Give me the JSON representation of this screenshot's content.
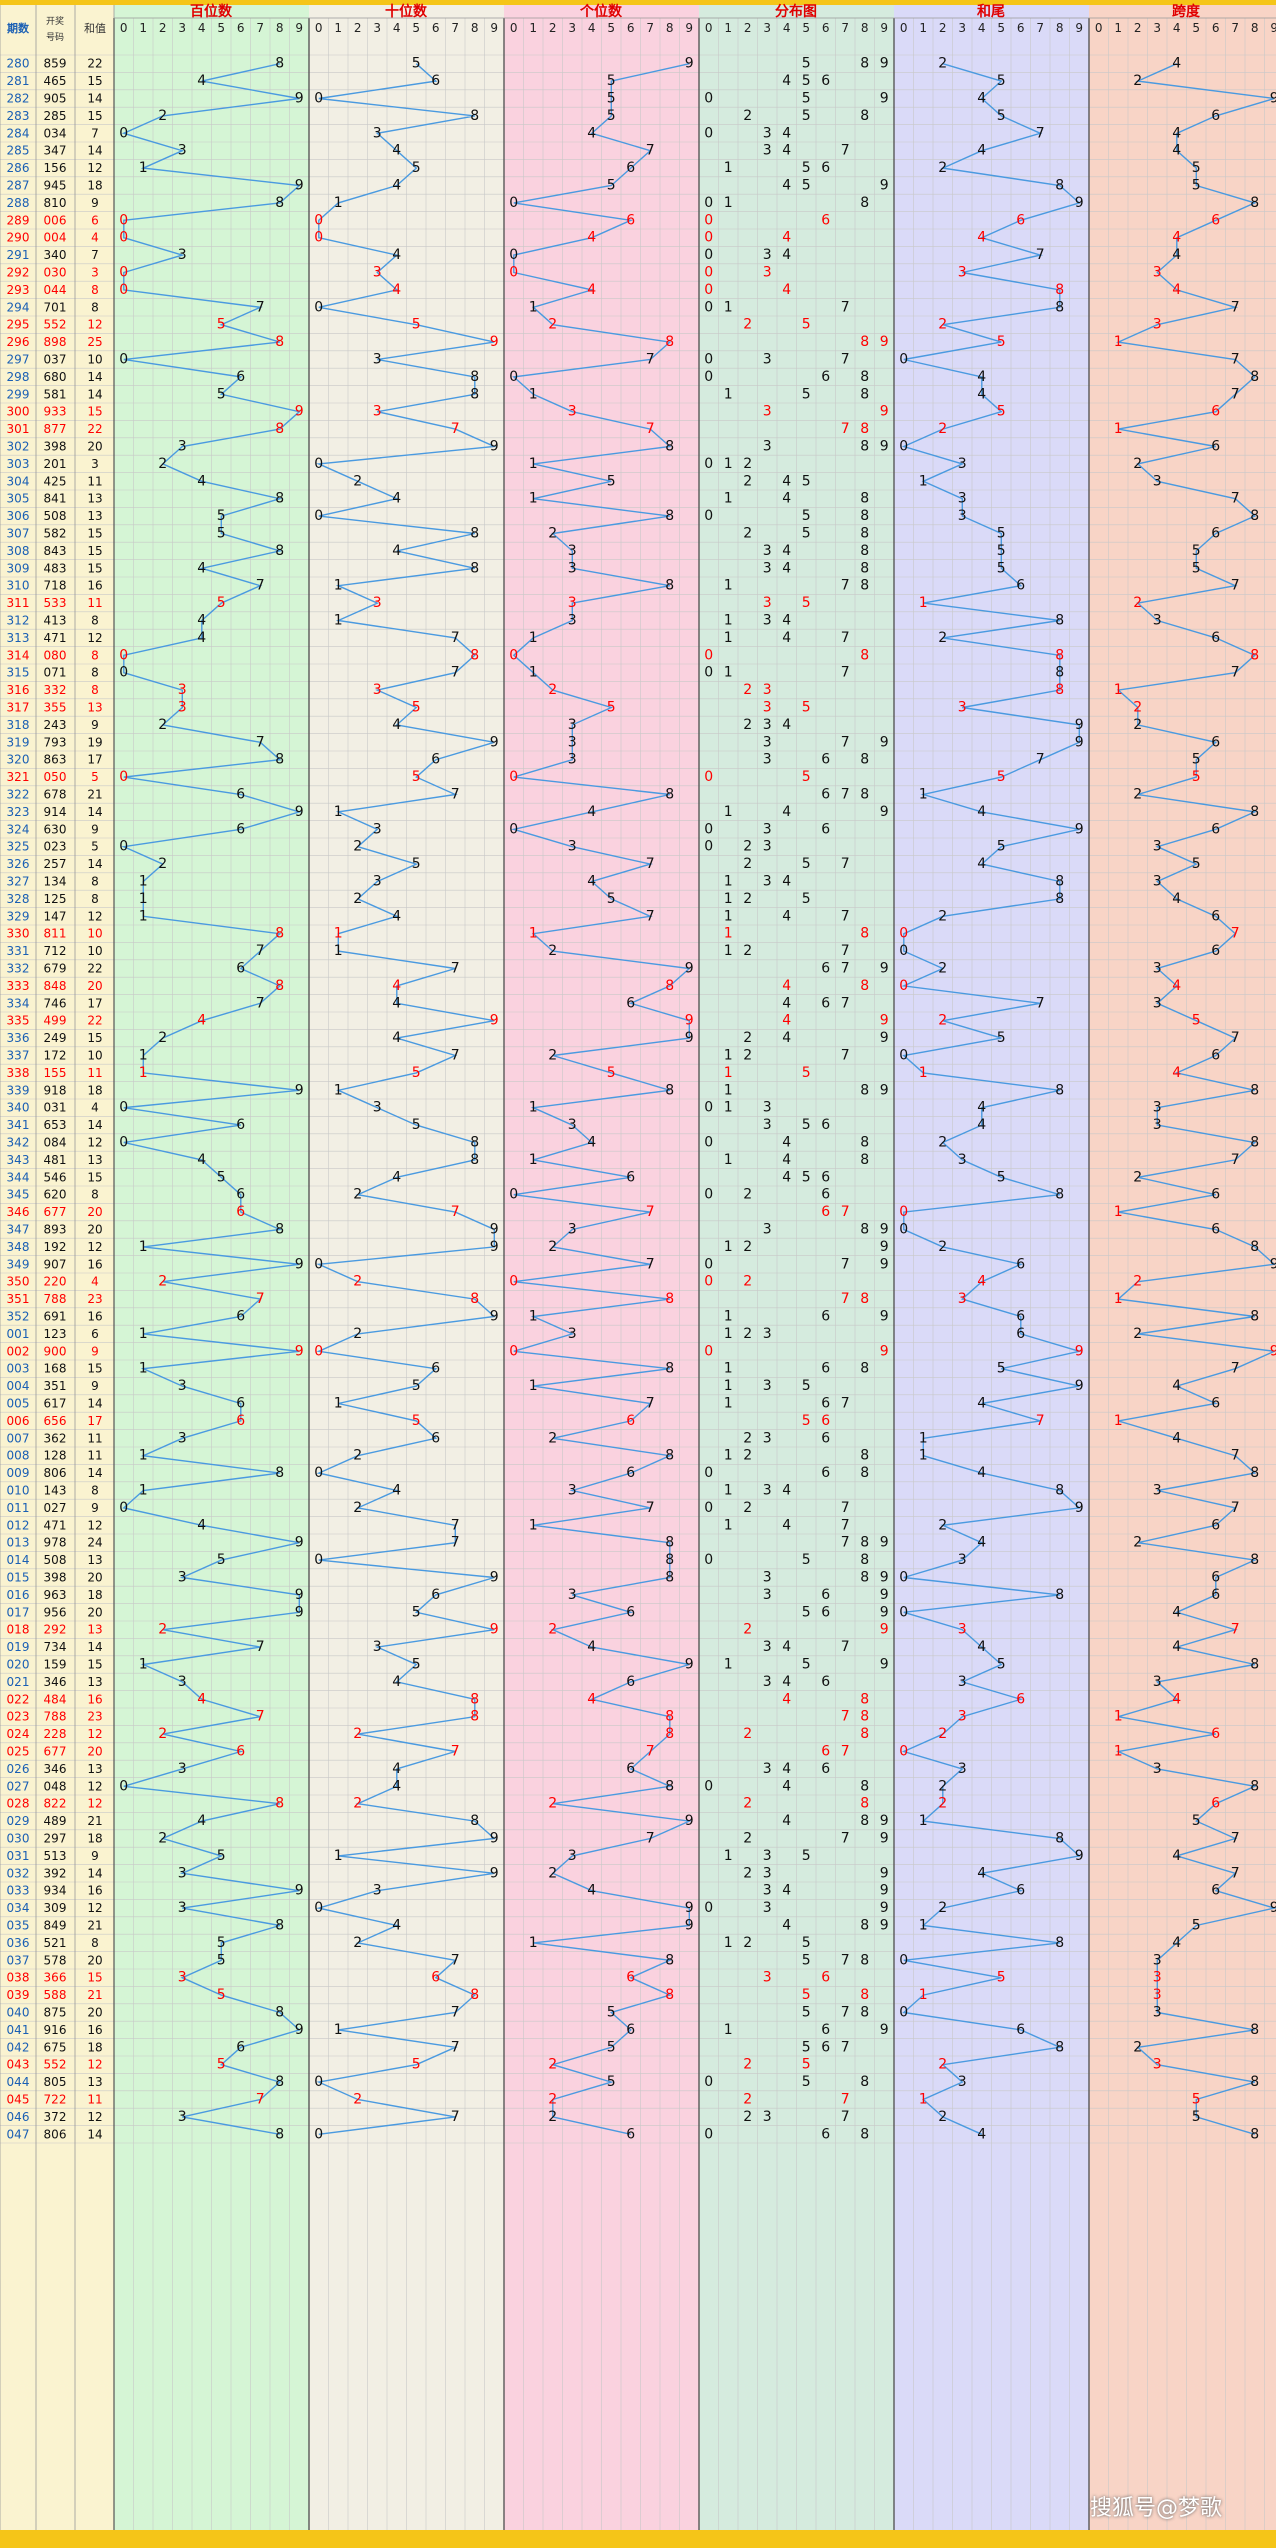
{
  "headers": {
    "issue": "期数",
    "number": "开奖号码",
    "sum": "和值",
    "hundreds": "百位数",
    "tens": "十位数",
    "units": "个位数",
    "distribution": "分布图",
    "sum_tail": "和尾",
    "span": "跨度"
  },
  "digit_labels": [
    "0",
    "1",
    "2",
    "3",
    "4",
    "5",
    "6",
    "7",
    "8",
    "9"
  ],
  "watermark": "搜狐号@梦歌",
  "colors": {
    "hundreds_bg": "#d5f5d5",
    "tens_bg": "#f2efe4",
    "units_bg": "#fad2df",
    "distribution_bg": "#d5ebde",
    "sum_tail_bg": "#dadaf8",
    "span_bg": "#f8d4c6",
    "line": "#4a9ae0",
    "red": "#ff0000",
    "header_red": "#e00000",
    "issue_blue": "#1a5fb4",
    "left_bg": "#faf3d0",
    "grid": "#c8c8c8"
  },
  "chart_data": {
    "type": "table",
    "columns": [
      "issue",
      "number",
      "sum"
    ],
    "rows": [
      [
        "280",
        "859",
        "22"
      ],
      [
        "281",
        "465",
        "15"
      ],
      [
        "282",
        "905",
        "14"
      ],
      [
        "283",
        "285",
        "15"
      ],
      [
        "284",
        "034",
        "7"
      ],
      [
        "285",
        "347",
        "14"
      ],
      [
        "286",
        "156",
        "12"
      ],
      [
        "287",
        "945",
        "18"
      ],
      [
        "288",
        "810",
        "9"
      ],
      [
        "289",
        "006",
        "6"
      ],
      [
        "290",
        "004",
        "4"
      ],
      [
        "291",
        "340",
        "7"
      ],
      [
        "292",
        "030",
        "3"
      ],
      [
        "293",
        "044",
        "8"
      ],
      [
        "294",
        "701",
        "8"
      ],
      [
        "295",
        "552",
        "12"
      ],
      [
        "296",
        "898",
        "25"
      ],
      [
        "297",
        "037",
        "10"
      ],
      [
        "298",
        "680",
        "14"
      ],
      [
        "299",
        "581",
        "14"
      ],
      [
        "300",
        "933",
        "15"
      ],
      [
        "301",
        "877",
        "22"
      ],
      [
        "302",
        "398",
        "20"
      ],
      [
        "303",
        "201",
        "3"
      ],
      [
        "304",
        "425",
        "11"
      ],
      [
        "305",
        "841",
        "13"
      ],
      [
        "306",
        "508",
        "13"
      ],
      [
        "307",
        "582",
        "15"
      ],
      [
        "308",
        "843",
        "15"
      ],
      [
        "309",
        "483",
        "15"
      ],
      [
        "310",
        "718",
        "16"
      ],
      [
        "311",
        "533",
        "11"
      ],
      [
        "312",
        "413",
        "8"
      ],
      [
        "313",
        "471",
        "12"
      ],
      [
        "314",
        "080",
        "8"
      ],
      [
        "315",
        "071",
        "8"
      ],
      [
        "316",
        "332",
        "8"
      ],
      [
        "317",
        "355",
        "13"
      ],
      [
        "318",
        "243",
        "9"
      ],
      [
        "319",
        "793",
        "19"
      ],
      [
        "320",
        "863",
        "17"
      ],
      [
        "321",
        "050",
        "5"
      ],
      [
        "322",
        "678",
        "21"
      ],
      [
        "323",
        "914",
        "14"
      ],
      [
        "324",
        "630",
        "9"
      ],
      [
        "325",
        "023",
        "5"
      ],
      [
        "326",
        "257",
        "14"
      ],
      [
        "327",
        "134",
        "8"
      ],
      [
        "328",
        "125",
        "8"
      ],
      [
        "329",
        "147",
        "12"
      ],
      [
        "330",
        "811",
        "10"
      ],
      [
        "331",
        "712",
        "10"
      ],
      [
        "332",
        "679",
        "22"
      ],
      [
        "333",
        "848",
        "20"
      ],
      [
        "334",
        "746",
        "17"
      ],
      [
        "335",
        "499",
        "22"
      ],
      [
        "336",
        "249",
        "15"
      ],
      [
        "337",
        "172",
        "10"
      ],
      [
        "338",
        "155",
        "11"
      ],
      [
        "339",
        "918",
        "18"
      ],
      [
        "340",
        "031",
        "4"
      ],
      [
        "341",
        "653",
        "14"
      ],
      [
        "342",
        "084",
        "12"
      ],
      [
        "343",
        "481",
        "13"
      ],
      [
        "344",
        "546",
        "15"
      ],
      [
        "345",
        "620",
        "8"
      ],
      [
        "346",
        "677",
        "20"
      ],
      [
        "347",
        "893",
        "20"
      ],
      [
        "348",
        "192",
        "12"
      ],
      [
        "349",
        "907",
        "16"
      ],
      [
        "350",
        "220",
        "4"
      ],
      [
        "351",
        "788",
        "23"
      ],
      [
        "352",
        "691",
        "16"
      ],
      [
        "001",
        "123",
        "6"
      ],
      [
        "002",
        "900",
        "9"
      ],
      [
        "003",
        "168",
        "15"
      ],
      [
        "004",
        "351",
        "9"
      ],
      [
        "005",
        "617",
        "14"
      ],
      [
        "006",
        "656",
        "17"
      ],
      [
        "007",
        "362",
        "11"
      ],
      [
        "008",
        "128",
        "11"
      ],
      [
        "009",
        "806",
        "14"
      ],
      [
        "010",
        "143",
        "8"
      ],
      [
        "011",
        "027",
        "9"
      ],
      [
        "012",
        "471",
        "12"
      ],
      [
        "013",
        "978",
        "24"
      ],
      [
        "014",
        "508",
        "13"
      ],
      [
        "015",
        "398",
        "20"
      ],
      [
        "016",
        "963",
        "18"
      ],
      [
        "017",
        "956",
        "20"
      ],
      [
        "018",
        "292",
        "13"
      ],
      [
        "019",
        "734",
        "14"
      ],
      [
        "020",
        "159",
        "15"
      ],
      [
        "021",
        "346",
        "13"
      ],
      [
        "022",
        "484",
        "16"
      ],
      [
        "023",
        "788",
        "23"
      ],
      [
        "024",
        "228",
        "12"
      ],
      [
        "025",
        "677",
        "20"
      ],
      [
        "026",
        "346",
        "13"
      ],
      [
        "027",
        "048",
        "12"
      ],
      [
        "028",
        "822",
        "12"
      ],
      [
        "029",
        "489",
        "21"
      ],
      [
        "030",
        "297",
        "18"
      ],
      [
        "031",
        "513",
        "9"
      ],
      [
        "032",
        "392",
        "14"
      ],
      [
        "033",
        "934",
        "16"
      ],
      [
        "034",
        "309",
        "12"
      ],
      [
        "035",
        "849",
        "21"
      ],
      [
        "036",
        "521",
        "8"
      ],
      [
        "037",
        "578",
        "20"
      ],
      [
        "038",
        "366",
        "15"
      ],
      [
        "039",
        "588",
        "21"
      ],
      [
        "040",
        "875",
        "20"
      ],
      [
        "041",
        "916",
        "16"
      ],
      [
        "042",
        "675",
        "18"
      ],
      [
        "043",
        "552",
        "12"
      ],
      [
        "044",
        "805",
        "13"
      ],
      [
        "045",
        "722",
        "11"
      ],
      [
        "046",
        "372",
        "12"
      ],
      [
        "047",
        "806",
        "14"
      ]
    ]
  }
}
